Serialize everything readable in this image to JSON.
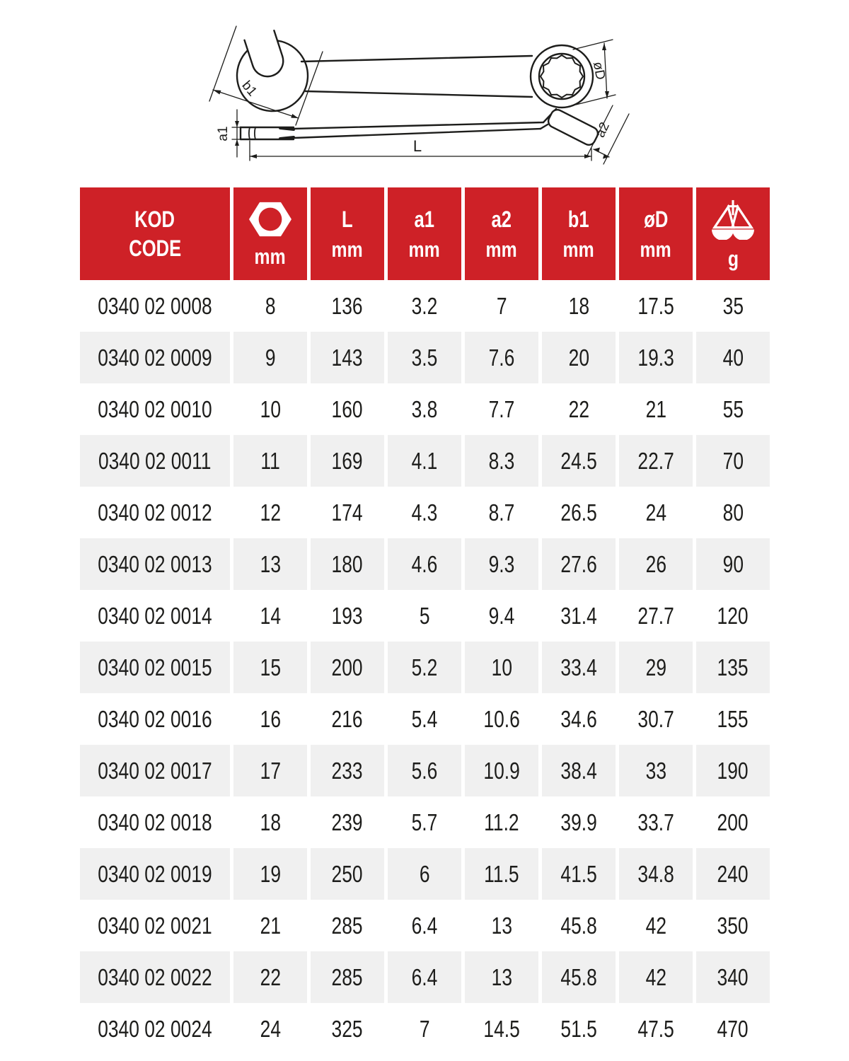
{
  "colors": {
    "header_red": "#ce2127",
    "row_stripe": "#f0f0f0",
    "ink": "#1d1d1b"
  },
  "diagram": {
    "description": "combination wrench technical drawing, top view and side view",
    "labels": {
      "b1": "b1",
      "d": "øD",
      "a1": "a1",
      "a2": "a2",
      "l": "L"
    }
  },
  "table": {
    "header": [
      {
        "label": "KOD",
        "label2": "CODE"
      },
      {
        "icon": "hex-nut-icon",
        "unit": "mm"
      },
      {
        "label": "L",
        "unit": "mm"
      },
      {
        "label": "a1",
        "unit": "mm"
      },
      {
        "label": "a2",
        "unit": "mm"
      },
      {
        "label": "b1",
        "unit": "mm"
      },
      {
        "label": "øD",
        "unit": "mm"
      },
      {
        "icon": "scale-icon",
        "unit": "g"
      }
    ],
    "rows": [
      [
        "0340 02 0008",
        "8",
        "136",
        "3.2",
        "7",
        "18",
        "17.5",
        "35"
      ],
      [
        "0340 02 0009",
        "9",
        "143",
        "3.5",
        "7.6",
        "20",
        "19.3",
        "40"
      ],
      [
        "0340 02 0010",
        "10",
        "160",
        "3.8",
        "7.7",
        "22",
        "21",
        "55"
      ],
      [
        "0340 02 0011",
        "11",
        "169",
        "4.1",
        "8.3",
        "24.5",
        "22.7",
        "70"
      ],
      [
        "0340 02 0012",
        "12",
        "174",
        "4.3",
        "8.7",
        "26.5",
        "24",
        "80"
      ],
      [
        "0340 02 0013",
        "13",
        "180",
        "4.6",
        "9.3",
        "27.6",
        "26",
        "90"
      ],
      [
        "0340 02 0014",
        "14",
        "193",
        "5",
        "9.4",
        "31.4",
        "27.7",
        "120"
      ],
      [
        "0340 02 0015",
        "15",
        "200",
        "5.2",
        "10",
        "33.4",
        "29",
        "135"
      ],
      [
        "0340 02 0016",
        "16",
        "216",
        "5.4",
        "10.6",
        "34.6",
        "30.7",
        "155"
      ],
      [
        "0340 02 0017",
        "17",
        "233",
        "5.6",
        "10.9",
        "38.4",
        "33",
        "190"
      ],
      [
        "0340 02 0018",
        "18",
        "239",
        "5.7",
        "11.2",
        "39.9",
        "33.7",
        "200"
      ],
      [
        "0340 02 0019",
        "19",
        "250",
        "6",
        "11.5",
        "41.5",
        "34.8",
        "240"
      ],
      [
        "0340 02 0021",
        "21",
        "285",
        "6.4",
        "13",
        "45.8",
        "42",
        "350"
      ],
      [
        "0340 02 0022",
        "22",
        "285",
        "6.4",
        "13",
        "45.8",
        "42",
        "340"
      ],
      [
        "0340 02 0024",
        "24",
        "325",
        "7",
        "14.5",
        "51.5",
        "47.5",
        "470"
      ]
    ]
  }
}
